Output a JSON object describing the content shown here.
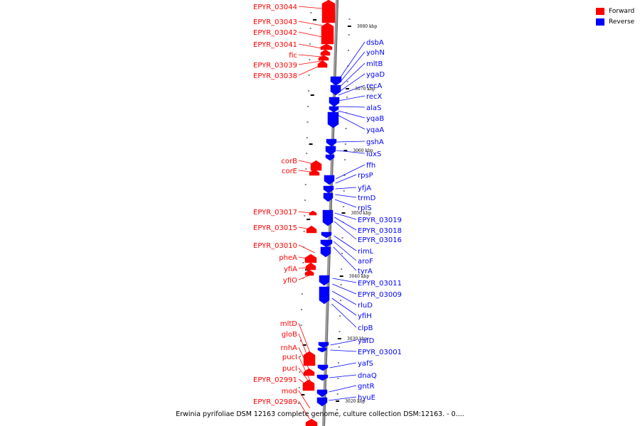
{
  "legend": {
    "items": [
      {
        "label": "Forward",
        "color": "#ff0000"
      },
      {
        "label": "Reverse",
        "color": "#0000ff"
      }
    ]
  },
  "caption": "Erwinia pyrifoliae DSM 12163 complete genome, culture collection DSM:12163. - 0....",
  "scale_labels": [
    "3080 kbp",
    "3070 kbp",
    "3060 kbp",
    "3050 kbp",
    "3040 kbp",
    "3030 kbp",
    "3020 kbp"
  ],
  "forward_genes": [
    "EPYR_03044",
    "EPYR_03043",
    "EPYR_03042",
    "EPYR_03041",
    "fic",
    "EPYR_03039",
    "EPYR_03038",
    "corB",
    "corE",
    "EPYR_03017",
    "EPYR_03015",
    "EPYR_03010",
    "pheA",
    "yfiA",
    "yfiO",
    "mltD",
    "gloB",
    "rnhA",
    "pucI",
    "pucI",
    "EPYR_02991",
    "mod",
    "EPYR_02989"
  ],
  "reverse_genes": [
    "dsbA",
    "yohN",
    "mltB",
    "ygaD",
    "recA",
    "recX",
    "alaS",
    "yqaB",
    "yqaA",
    "gshA",
    "luxS",
    "ffh",
    "rpsP",
    "yfjA",
    "trmD",
    "rplS",
    "EPYR_03019",
    "EPYR_03018",
    "EPYR_03016",
    "rimL",
    "aroF",
    "tyrA",
    "EPYR_03011",
    "EPYR_03009",
    "rluD",
    "yfiH",
    "clpB",
    "yafD",
    "EPYR_03001",
    "yafS",
    "dnaQ",
    "gntR",
    "hyuE"
  ]
}
